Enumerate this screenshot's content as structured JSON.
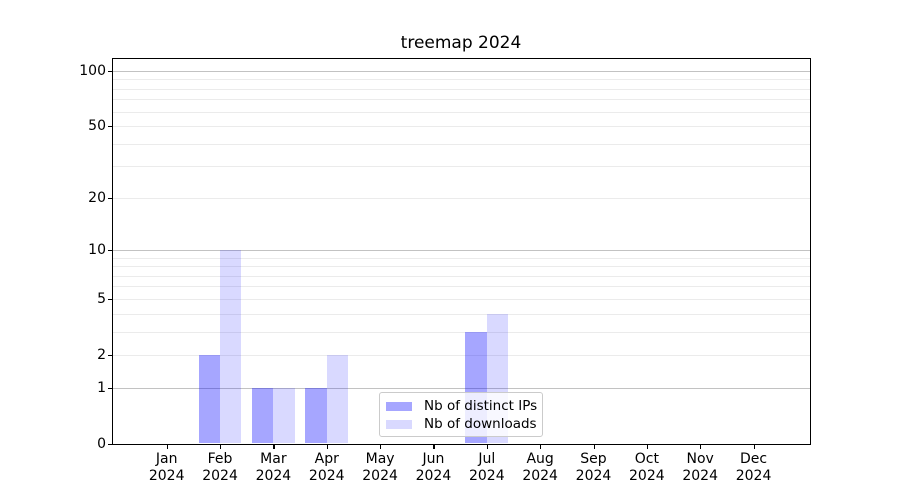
{
  "title": "treemap 2024",
  "chart_data": {
    "type": "bar",
    "x_months": [
      "Jan",
      "Feb",
      "Mar",
      "Apr",
      "May",
      "Jun",
      "Jul",
      "Aug",
      "Sep",
      "Oct",
      "Nov",
      "Dec"
    ],
    "x_year": "2024",
    "series": [
      {
        "name": "Nb of distinct IPs",
        "color": "rgba(0,0,255,0.35)",
        "color_on_white": "#a6a6ff",
        "values": [
          0,
          2,
          1,
          1,
          0,
          0,
          3,
          0,
          0,
          0,
          0,
          0
        ]
      },
      {
        "name": "Nb of downloads",
        "color": "rgba(0,0,255,0.15)",
        "color_on_white": "#d9d9ff",
        "values": [
          0,
          10,
          1,
          2,
          0,
          0,
          4,
          0,
          0,
          0,
          0,
          0
        ]
      }
    ],
    "title": "treemap 2024",
    "xlabel": "",
    "ylabel": "",
    "y_scale": "log10(1+y)",
    "ylim": [
      0,
      116
    ],
    "y_tick_labels": [
      0,
      1,
      2,
      5,
      10,
      20,
      50,
      100
    ],
    "y_major_gridlines": [
      1,
      10,
      100
    ],
    "y_minor_gridlines": [
      2,
      3,
      4,
      5,
      6,
      7,
      8,
      9,
      20,
      30,
      40,
      50,
      60,
      70,
      80,
      90
    ],
    "grid": "on",
    "legend_position": "lower center (inside plot)"
  },
  "colors": {
    "bar_dark": "#a6a6ff",
    "bar_light": "#d9d9ff",
    "grid_major": "#c2c2c2",
    "grid_minor": "#ebebeb",
    "spine": "#000000",
    "text": "#000000",
    "legend_border": "#cbcbcb",
    "legend_bg": "rgba(255,255,255,0.8)"
  }
}
